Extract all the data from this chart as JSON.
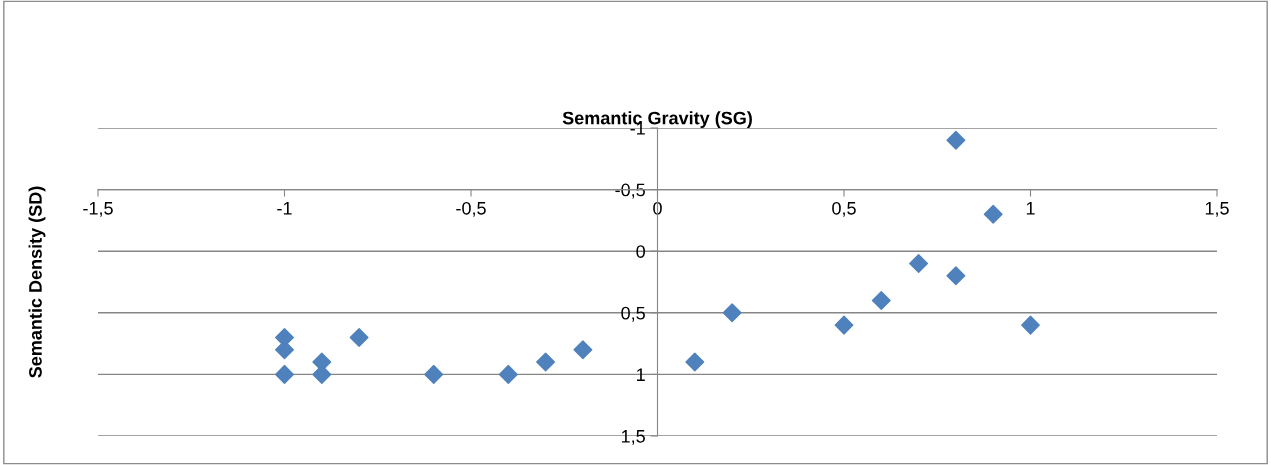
{
  "chart_data": {
    "type": "scatter",
    "title": "Semantic Gravity (SG)",
    "ylabel": "Semantic Density (SD)",
    "x": [
      0.8,
      0.9,
      0.7,
      0.8,
      0.6,
      0.2,
      0.5,
      1.0,
      0.1,
      -0.2,
      -0.3,
      -0.4,
      -0.6,
      -0.8,
      -0.9,
      -0.9,
      -1.0,
      -1.0,
      -1.0
    ],
    "series": [
      {
        "color": "#4f81bd",
        "values": [
          -0.9,
          -0.3,
          0.1,
          0.2,
          0.4,
          0.5,
          0.6,
          0.6,
          0.9,
          0.8,
          0.9,
          1.0,
          1.0,
          0.7,
          0.9,
          1.0,
          0.7,
          0.8,
          1.0
        ]
      }
    ],
    "xlim": [
      -1.5,
      1.5
    ],
    "xticks": [
      {
        "value": -1.5,
        "label": "-1,5"
      },
      {
        "value": -1,
        "label": "-1"
      },
      {
        "value": -0.5,
        "label": "-0,5"
      },
      {
        "value": 0,
        "label": "0"
      },
      {
        "value": 0.5,
        "label": "0,5"
      },
      {
        "value": 1,
        "label": "1"
      },
      {
        "value": 1.5,
        "label": "1,5"
      }
    ],
    "ylim": [
      1.5,
      -1
    ],
    "yticks": [
      {
        "value": -1,
        "label": "-1"
      },
      {
        "value": -0.5,
        "label": "-0,5"
      },
      {
        "value": 0,
        "label": "0"
      },
      {
        "value": 0.5,
        "label": "0,5"
      },
      {
        "value": 1,
        "label": "1"
      },
      {
        "value": 1.5,
        "label": "1,5"
      }
    ],
    "grid": "y",
    "marker": "diamond",
    "legend": false
  }
}
